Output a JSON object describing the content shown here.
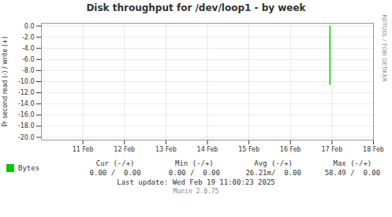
{
  "chart_data": {
    "type": "line",
    "title": "Disk throughput for /dev/loop1 - by week",
    "ylabel": "Pr second read (-) / write (+)",
    "x": [
      1739746200,
      1739746200
    ],
    "series": [
      {
        "name": "Bytes",
        "color": "#00cc00",
        "values": [
          0,
          -10.5
        ]
      }
    ],
    "xlim": [
      1739145600,
      1739836800
    ],
    "xticks": [
      {
        "value": 1739232000,
        "label": "11 Feb"
      },
      {
        "value": 1739318400,
        "label": "12 Feb"
      },
      {
        "value": 1739404800,
        "label": "13 Feb"
      },
      {
        "value": 1739491200,
        "label": "14 Feb"
      },
      {
        "value": 1739577600,
        "label": "15 Feb"
      },
      {
        "value": 1739664000,
        "label": "16 Feb"
      },
      {
        "value": 1739750400,
        "label": "17 Feb"
      },
      {
        "value": 1739836800,
        "label": "18 Feb"
      }
    ],
    "ylim": [
      -20.5,
      0.5
    ],
    "yticks": [
      {
        "value": 0.0,
        "label": "0.0"
      },
      {
        "value": -2.0,
        "label": "-2.0"
      },
      {
        "value": -4.0,
        "label": "-4.0"
      },
      {
        "value": -6.0,
        "label": "-6.0"
      },
      {
        "value": -8.0,
        "label": "-8.0"
      },
      {
        "value": -10.0,
        "label": "-10.0"
      },
      {
        "value": -12.0,
        "label": "-12.0"
      },
      {
        "value": -14.0,
        "label": "-14.0"
      },
      {
        "value": -16.0,
        "label": "-16.0"
      },
      {
        "value": -18.0,
        "label": "-18.0"
      },
      {
        "value": -20.0,
        "label": "-20.0"
      }
    ],
    "grid": true,
    "legend": "bottom left",
    "annotations": [
      "Cur (-/+)",
      "Min (-/+)",
      "Avg (-/+)",
      "Max (-/+)",
      "0.00 /  0.00",
      "0.00 /  0.00",
      "26.21m/  0.00",
      "58.49 /  0.00",
      "Last update: Wed Feb 19 11:00:23 2025",
      "Munin 2.0.75",
      "RRDTOOL / TOBI OETIKER"
    ]
  }
}
